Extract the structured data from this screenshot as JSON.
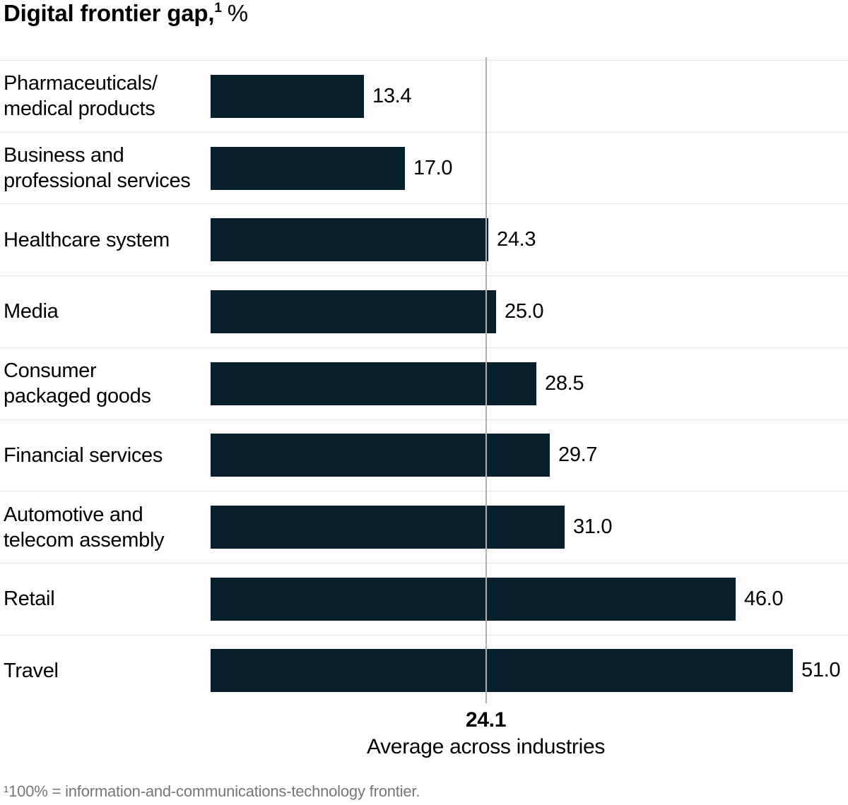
{
  "chart_data": {
    "type": "bar",
    "orientation": "horizontal",
    "title_main": "Digital frontier gap,",
    "title_superscript": "1",
    "title_unit": "%",
    "categories": [
      "Pharmaceuticals/\nmedical products",
      "Business and\nprofessional services",
      "Healthcare system",
      "Media",
      "Consumer\npackaged goods",
      "Financial services",
      "Automotive and\ntelecom assembly",
      "Retail",
      "Travel"
    ],
    "values": [
      13.4,
      17.0,
      24.3,
      25.0,
      28.5,
      29.7,
      31.0,
      46.0,
      51.0
    ],
    "value_labels": [
      "13.4",
      "17.0",
      "24.3",
      "25.0",
      "28.5",
      "29.7",
      "31.0",
      "46.0",
      "51.0"
    ],
    "xlim": [
      0,
      55.5
    ],
    "average": {
      "value": 24.1,
      "label": "24.1",
      "caption": "Average across industries"
    },
    "footnote": "¹100% = information-and-communications-technology frontier.",
    "legend": "none",
    "grid": "row-separators"
  },
  "colors": {
    "bar": "#071f2d",
    "reference_line": "#b0b0b0",
    "row_separator": "#e2e2e2",
    "text": "#000000",
    "footnote_text": "#767676",
    "background": "#ffffff"
  }
}
